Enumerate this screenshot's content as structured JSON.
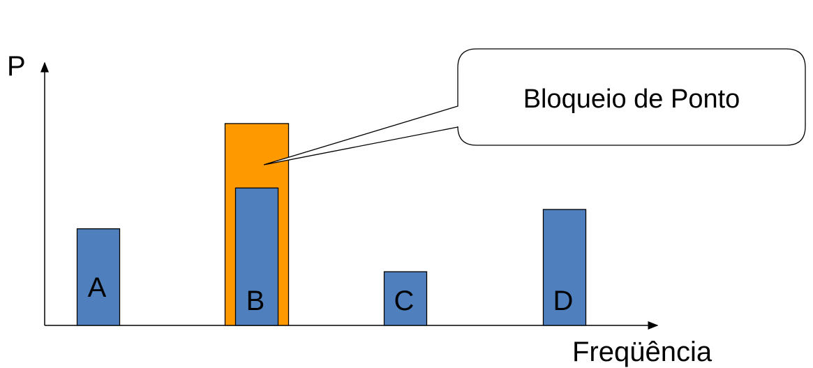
{
  "axes": {
    "y_label": "P",
    "x_label": "Freqüência"
  },
  "callout": {
    "text": "Bloqueio de Ponto",
    "target": "B"
  },
  "colors": {
    "bar": "#4F7FBC",
    "highlight": "#FF9900",
    "stroke": "#000000"
  },
  "chart_data": {
    "type": "bar",
    "categories": [
      "A",
      "B",
      "C",
      "D"
    ],
    "values": [
      2.25,
      3.2,
      1.25,
      2.7
    ],
    "highlight": {
      "category": "B",
      "value": 4.7,
      "label": "Bloqueio de Ponto"
    },
    "xlabel": "Freqüência",
    "ylabel": "P",
    "ylim": [
      0,
      6.5
    ],
    "grid": false
  }
}
